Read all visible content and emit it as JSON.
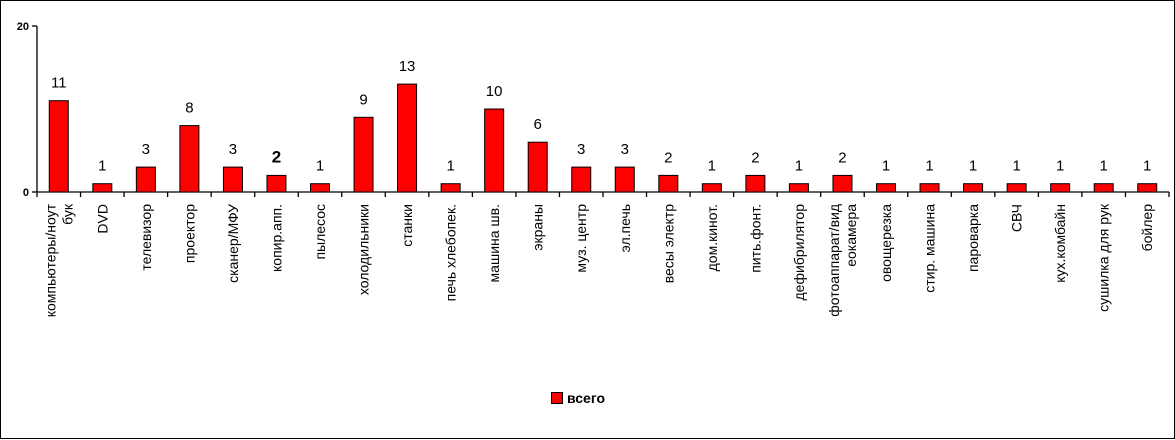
{
  "chart_data": {
    "type": "bar",
    "categories": [
      [
        "компьютеры/ноут",
        "бук"
      ],
      [
        "DVD"
      ],
      [
        "телевизор"
      ],
      [
        "проектор"
      ],
      [
        "сканер/МФУ"
      ],
      [
        "копир.апп."
      ],
      [
        "пылесос"
      ],
      [
        "холодильники"
      ],
      [
        "станки"
      ],
      [
        "печь хлебопек."
      ],
      [
        "машина шв."
      ],
      [
        "экраны"
      ],
      [
        "муз. центр"
      ],
      [
        "эл.печь"
      ],
      [
        "весы электр"
      ],
      [
        "дом.кинот."
      ],
      [
        "пить.фонт."
      ],
      [
        "дефибрилятор"
      ],
      [
        "фотоаппарат/вид",
        "еокамера"
      ],
      [
        "овощерезка"
      ],
      [
        "стир. машина"
      ],
      [
        "пароварка"
      ],
      [
        "СВЧ"
      ],
      [
        "кух.комбайн"
      ],
      [
        "сушилка для рук"
      ],
      [
        "бойлер"
      ]
    ],
    "series": [
      {
        "name": "всего",
        "values": [
          11,
          1,
          3,
          8,
          3,
          2,
          1,
          9,
          13,
          1,
          10,
          6,
          3,
          3,
          2,
          1,
          2,
          1,
          2,
          1,
          1,
          1,
          1,
          1,
          1,
          1
        ],
        "color": "#ff0000"
      }
    ],
    "data_labels": [
      "11",
      "1",
      "3",
      "8",
      "3",
      "2",
      "1",
      "9",
      "13",
      "1",
      "10",
      "6",
      "3",
      "3",
      "2",
      "1",
      "2",
      "1",
      "2",
      "1",
      "1",
      "1",
      "1",
      "1",
      "1",
      "1"
    ],
    "bold_label_index": 5,
    "yticks": [
      "0",
      "20"
    ],
    "ylim": [
      0,
      20
    ],
    "legend": {
      "label": "всего",
      "position": "bottom"
    },
    "grid": false
  }
}
